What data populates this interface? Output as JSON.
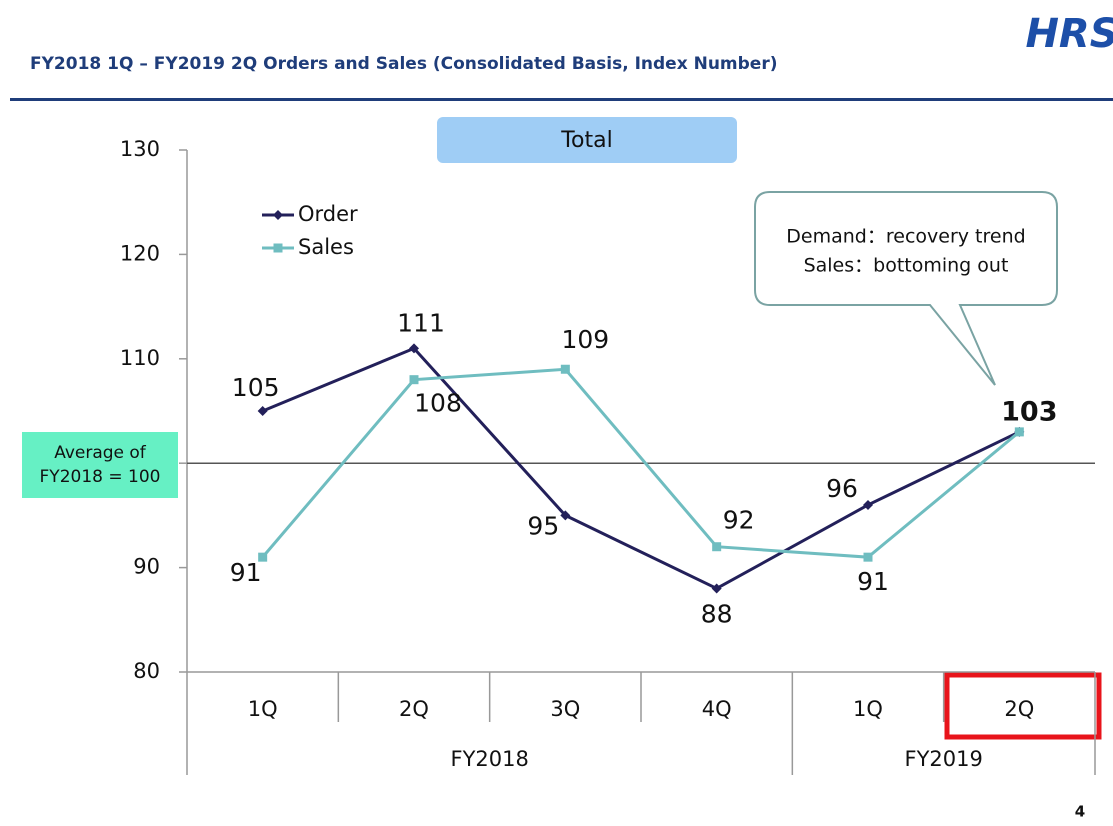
{
  "header": {
    "title": "FY2018 1Q – FY2019 2Q  Orders and Sales (Consolidated Basis, Index Number)",
    "logo": "HRS",
    "page_number": "4"
  },
  "chart_data": {
    "type": "line",
    "title": "Total",
    "category_groups": [
      {
        "name": "FY2018",
        "categories": [
          "1Q",
          "2Q",
          "3Q",
          "4Q"
        ]
      },
      {
        "name": "FY2019",
        "categories": [
          "1Q",
          "2Q"
        ]
      }
    ],
    "series": [
      {
        "name": "Order",
        "color": "#23205a",
        "values": [
          105,
          111,
          95,
          88,
          96,
          103
        ]
      },
      {
        "name": "Sales",
        "color": "#6fbdc0",
        "values": [
          91,
          108,
          109,
          92,
          91,
          103
        ]
      }
    ],
    "ylim": [
      80,
      130
    ],
    "yticks": [
      80,
      90,
      100,
      110,
      120,
      130
    ],
    "reference_line": {
      "value": 100,
      "label": "Average of FY2018 = 100"
    },
    "annotation": [
      "Demand：recovery trend",
      "Sales：bottoming out"
    ],
    "legend": "top-left"
  }
}
